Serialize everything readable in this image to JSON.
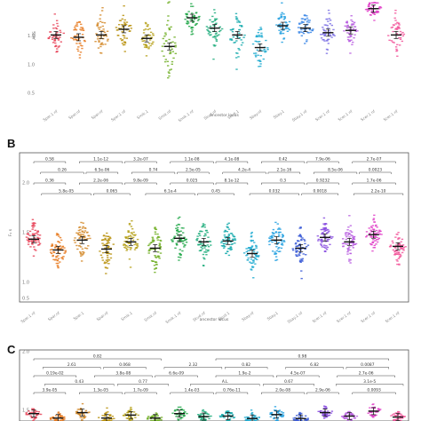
{
  "chart_data": [
    {
      "type": "scatter",
      "panel_label": "",
      "xlabel": "ancestor locus",
      "ylabel": "AGS",
      "yticks": [
        "1.5",
        "1.0",
        "0.5"
      ],
      "categories": [
        {
          "label": "Spar.1 nf",
          "color": "#e8455a",
          "mean": 1.52,
          "sd": 0.18
        },
        {
          "label": "Spar.nf",
          "color": "#e87a20",
          "mean": 1.48,
          "sd": 0.18
        },
        {
          "label": "Spar.nf",
          "color": "#d4892a",
          "mean": 1.52,
          "sd": 0.18
        },
        {
          "label": "Spar.1 nf",
          "color": "#b8900c",
          "mean": 1.62,
          "sd": 0.16
        },
        {
          "label": "Smik.1",
          "color": "#b6a11a",
          "mean": 1.46,
          "sd": 0.14
        },
        {
          "label": "Smik.nf",
          "color": "#6fae22",
          "mean": 1.32,
          "sd": 0.26
        },
        {
          "label": "Smik.1 nf",
          "color": "#22a84a",
          "mean": 1.82,
          "sd": 0.12
        },
        {
          "label": "Skud.nf",
          "color": "#20ad7d",
          "mean": 1.64,
          "sd": 0.16
        },
        {
          "label": "Skud.1",
          "color": "#1aacae",
          "mean": 1.52,
          "sd": 0.18
        },
        {
          "label": "Sbay.nf",
          "color": "#1eaad0",
          "mean": 1.3,
          "sd": 0.18
        },
        {
          "label": "Sbay.1",
          "color": "#22a0e0",
          "mean": 1.68,
          "sd": 0.14
        },
        {
          "label": "Sbay.1 nf",
          "color": "#3a86e6",
          "mean": 1.64,
          "sd": 0.14
        },
        {
          "label": "Scer.1 nf",
          "color": "#7a6ee4",
          "mean": 1.56,
          "sd": 0.16
        },
        {
          "label": "Scer.1 nf",
          "color": "#b85ee0",
          "mean": 1.6,
          "sd": 0.14
        },
        {
          "label": "Scer.1 nf",
          "color": "#e040c8",
          "mean": 1.98,
          "sd": 0.1
        },
        {
          "label": "Scer.1 nf",
          "color": "#f2559a",
          "mean": 1.52,
          "sd": 0.16
        }
      ],
      "ylim": [
        0.3,
        2.1
      ]
    },
    {
      "type": "scatter",
      "panel_label": "B",
      "xlabel": "ancestor locus",
      "ylabel": "F₁ s",
      "yticks": [
        "2.0",
        "1.5",
        "1.0",
        "0.5"
      ],
      "categories": [
        {
          "label": "Spar.1 nf",
          "color": "#e8455a",
          "mean": 1.62,
          "sd": 0.18
        },
        {
          "label": "Spar.nf",
          "color": "#e87a20",
          "mean": 1.38,
          "sd": 0.22
        },
        {
          "label": "Spar.1",
          "color": "#d4892a",
          "mean": 1.6,
          "sd": 0.22
        },
        {
          "label": "Spar.nf",
          "color": "#b8900c",
          "mean": 1.4,
          "sd": 0.22
        },
        {
          "label": "Smik.1",
          "color": "#b6a11a",
          "mean": 1.56,
          "sd": 0.2
        },
        {
          "label": "Smik.nf",
          "color": "#6fae22",
          "mean": 1.42,
          "sd": 0.24
        },
        {
          "label": "Smik.1 nf",
          "color": "#22a84a",
          "mean": 1.64,
          "sd": 0.22
        },
        {
          "label": "Skud.nf",
          "color": "#20ad7d",
          "mean": 1.56,
          "sd": 0.22
        },
        {
          "label": "Skud.1",
          "color": "#1aacae",
          "mean": 1.58,
          "sd": 0.18
        },
        {
          "label": "Sbay.nf",
          "color": "#1eaad0",
          "mean": 1.3,
          "sd": 0.18
        },
        {
          "label": "Sbay.1",
          "color": "#22a0e0",
          "mean": 1.6,
          "sd": 0.22
        },
        {
          "label": "Sbay.1 nf",
          "color": "#3a5ad6",
          "mean": 1.42,
          "sd": 0.18
        },
        {
          "label": "Scer.1 nf",
          "color": "#8a4ee0",
          "mean": 1.66,
          "sd": 0.18
        },
        {
          "label": "Scer.1 nf",
          "color": "#b85ee0",
          "mean": 1.56,
          "sd": 0.18
        },
        {
          "label": "Scer.1 nf",
          "color": "#e040c8",
          "mean": 1.72,
          "sd": 0.16
        },
        {
          "label": "Scer.1 nf",
          "color": "#f2559a",
          "mean": 1.46,
          "sd": 0.16
        }
      ],
      "ylim": [
        0.3,
        2.2
      ],
      "annotations": [
        {
          "text": "0.58",
          "level": 0
        },
        {
          "text": "1.1e-12",
          "level": 0
        },
        {
          "text": "3.2e-07",
          "level": 0
        },
        {
          "text": "1.1e-08",
          "level": 0
        },
        {
          "text": "4.1e-08",
          "level": 0
        },
        {
          "text": "0.42",
          "level": 0
        },
        {
          "text": "7.9e-06",
          "level": 0
        },
        {
          "text": "2.7e-07",
          "level": 0
        },
        {
          "text": "0.26",
          "level": 1
        },
        {
          "text": "6.5e-06",
          "level": 1
        },
        {
          "text": "0.74",
          "level": 1
        },
        {
          "text": "2.5e-05",
          "level": 1
        },
        {
          "text": "4.2e-4",
          "level": 1
        },
        {
          "text": "2.1e-16",
          "level": 1
        },
        {
          "text": "8.5e-06",
          "level": 1
        },
        {
          "text": "0.0023",
          "level": 1
        },
        {
          "text": "0.36",
          "level": 2
        },
        {
          "text": "2.2e-06",
          "level": 2
        },
        {
          "text": "9.8e-09",
          "level": 2
        },
        {
          "text": "0.025",
          "level": 2
        },
        {
          "text": "8.1e-12",
          "level": 2
        },
        {
          "text": "0.3",
          "level": 2
        },
        {
          "text": "0.9232",
          "level": 2
        },
        {
          "text": "1.7e-06",
          "level": 2
        },
        {
          "text": "5.8e-05",
          "level": 3
        },
        {
          "text": "0.065",
          "level": 3
        },
        {
          "text": "6.1e-4",
          "level": 3
        },
        {
          "text": "0.45",
          "level": 3
        },
        {
          "text": "0.032",
          "level": 3
        },
        {
          "text": "0.0018",
          "level": 3
        },
        {
          "text": "2.2e-10",
          "level": 3
        }
      ]
    },
    {
      "type": "scatter",
      "panel_label": "C",
      "xlabel": "",
      "ylabel": "",
      "yticks": [
        "2.0",
        "1.5"
      ],
      "categories": [
        {
          "label": "",
          "color": "#e8455a",
          "mean": 1.3,
          "sd": 0.12
        },
        {
          "label": "",
          "color": "#e87a20",
          "mean": 1.12,
          "sd": 0.12
        },
        {
          "label": "",
          "color": "#d4892a",
          "mean": 1.34,
          "sd": 0.14
        },
        {
          "label": "",
          "color": "#b8900c",
          "mean": 1.12,
          "sd": 0.12
        },
        {
          "label": "",
          "color": "#b6a11a",
          "mean": 1.24,
          "sd": 0.12
        },
        {
          "label": "",
          "color": "#6fae22",
          "mean": 1.12,
          "sd": 0.12
        },
        {
          "label": "",
          "color": "#22a84a",
          "mean": 1.3,
          "sd": 0.14
        },
        {
          "label": "",
          "color": "#20ad7d",
          "mean": 1.18,
          "sd": 0.12
        },
        {
          "label": "",
          "color": "#1aacae",
          "mean": 1.2,
          "sd": 0.12
        },
        {
          "label": "",
          "color": "#1eaad0",
          "mean": 1.1,
          "sd": 0.12
        },
        {
          "label": "",
          "color": "#22a0e0",
          "mean": 1.26,
          "sd": 0.14
        },
        {
          "label": "",
          "color": "#3a5ad6",
          "mean": 1.1,
          "sd": 0.12
        },
        {
          "label": "",
          "color": "#8a4ee0",
          "mean": 1.34,
          "sd": 0.12
        },
        {
          "label": "",
          "color": "#b85ee0",
          "mean": 1.2,
          "sd": 0.12
        },
        {
          "label": "",
          "color": "#e040c8",
          "mean": 1.4,
          "sd": 0.14
        },
        {
          "label": "",
          "color": "#f2559a",
          "mean": 1.16,
          "sd": 0.12
        }
      ],
      "ylim": [
        1.0,
        2.3
      ],
      "annotations": [
        {
          "text": "0.82",
          "level": 0
        },
        {
          "text": "0.98",
          "level": 0
        },
        {
          "text": "2.61",
          "level": 1
        },
        {
          "text": "0.068",
          "level": 1
        },
        {
          "text": "2.32",
          "level": 1
        },
        {
          "text": "0.82",
          "level": 1
        },
        {
          "text": "6.82",
          "level": 1
        },
        {
          "text": "0.0087",
          "level": 1
        },
        {
          "text": "0.19e-02",
          "level": 2
        },
        {
          "text": "3.8e-08",
          "level": 2
        },
        {
          "text": "6.6e-09",
          "level": 2
        },
        {
          "text": "1.9e-2",
          "level": 2
        },
        {
          "text": "4.5e-07",
          "level": 2
        },
        {
          "text": "2.7e-06",
          "level": 2
        },
        {
          "text": "0.43",
          "level": 3
        },
        {
          "text": "0.77",
          "level": 3
        },
        {
          "text": "A.L",
          "level": 3
        },
        {
          "text": "0.67",
          "level": 3
        },
        {
          "text": "3.1e-5",
          "level": 3
        },
        {
          "text": "3.9e-05",
          "level": 4
        },
        {
          "text": "1.3e-05",
          "level": 4
        },
        {
          "text": "1.7e-09",
          "level": 4
        },
        {
          "text": "1.4e-03",
          "level": 4
        },
        {
          "text": "0.76e-11",
          "level": 4
        },
        {
          "text": "2.0e-08",
          "level": 4
        },
        {
          "text": "2.9e-06",
          "level": 4
        },
        {
          "text": "0.0093",
          "level": 4
        }
      ]
    }
  ]
}
